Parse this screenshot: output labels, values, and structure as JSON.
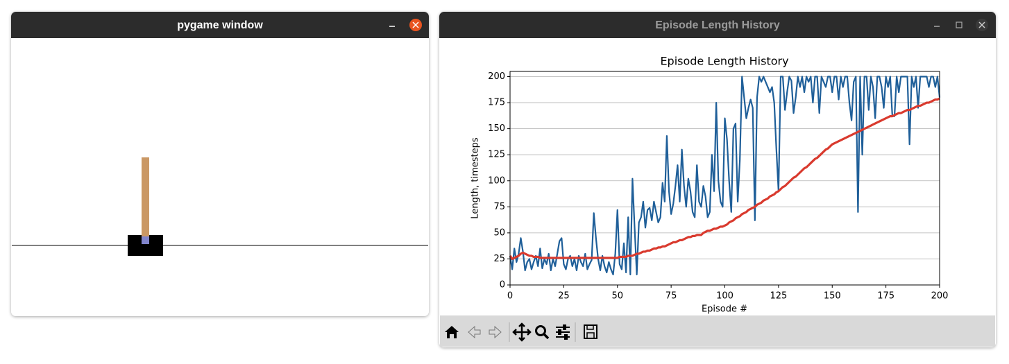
{
  "windows": [
    {
      "title": "pygame window"
    },
    {
      "title": "Episode Length History"
    }
  ],
  "chart_data": {
    "type": "line",
    "title": "Episode Length History",
    "x_label": "Episode #",
    "y_label": "Length, timesteps",
    "x": [
      0,
      1,
      2,
      3,
      4,
      5,
      6,
      7,
      8,
      9,
      10,
      11,
      12,
      13,
      14,
      15,
      16,
      17,
      18,
      19,
      20,
      21,
      22,
      23,
      24,
      25,
      26,
      27,
      28,
      29,
      30,
      31,
      32,
      33,
      34,
      35,
      36,
      37,
      38,
      39,
      40,
      41,
      42,
      43,
      44,
      45,
      46,
      47,
      48,
      49,
      50,
      51,
      52,
      53,
      54,
      55,
      56,
      57,
      58,
      59,
      60,
      61,
      62,
      63,
      64,
      65,
      66,
      67,
      68,
      69,
      70,
      71,
      72,
      73,
      74,
      75,
      76,
      77,
      78,
      79,
      80,
      81,
      82,
      83,
      84,
      85,
      86,
      87,
      88,
      89,
      90,
      91,
      92,
      93,
      94,
      95,
      96,
      97,
      98,
      99,
      100,
      101,
      102,
      103,
      104,
      105,
      106,
      107,
      108,
      109,
      110,
      111,
      112,
      113,
      114,
      115,
      116,
      117,
      118,
      119,
      120,
      121,
      122,
      123,
      124,
      125,
      126,
      127,
      128,
      129,
      130,
      131,
      132,
      133,
      134,
      135,
      136,
      137,
      138,
      139,
      140,
      141,
      142,
      143,
      144,
      145,
      146,
      147,
      148,
      149,
      150,
      151,
      152,
      153,
      154,
      155,
      156,
      157,
      158,
      159,
      160,
      161,
      162,
      163,
      164,
      165,
      166,
      167,
      168,
      169,
      170,
      171,
      172,
      173,
      174,
      175,
      176,
      177,
      178,
      179,
      180,
      181,
      182,
      183,
      184,
      185,
      186,
      187,
      188,
      189,
      190,
      191,
      192,
      193,
      194,
      195,
      196,
      197,
      198,
      199,
      200
    ],
    "xlim": [
      0,
      200
    ],
    "xticks": [
      0,
      25,
      50,
      75,
      100,
      125,
      150,
      175,
      200
    ],
    "ylim": [
      0,
      205
    ],
    "yticks": [
      0,
      25,
      50,
      75,
      100,
      125,
      150,
      175,
      200
    ],
    "grid": "y",
    "series": [
      {
        "color": "#1f5f99",
        "values": [
          28,
          15,
          35,
          22,
          30,
          45,
          32,
          14,
          22,
          25,
          15,
          22,
          28,
          18,
          35,
          16,
          25,
          20,
          30,
          14,
          25,
          18,
          30,
          42,
          45,
          20,
          15,
          25,
          28,
          18,
          25,
          14,
          28,
          22,
          18,
          30,
          15,
          20,
          24,
          69,
          45,
          25,
          14,
          28,
          18,
          12,
          22,
          15,
          10,
          30,
          72,
          20,
          15,
          40,
          12,
          65,
          10,
          102,
          55,
          10,
          60,
          65,
          80,
          55,
          72,
          74,
          62,
          80,
          70,
          60,
          65,
          98,
          80,
          143,
          90,
          68,
          78,
          95,
          115,
          80,
          130,
          95,
          75,
          102,
          90,
          70,
          65,
          115,
          80,
          75,
          95,
          85,
          65,
          70,
          125,
          90,
          175,
          100,
          80,
          75,
          160,
          140,
          100,
          70,
          150,
          155,
          80,
          120,
          200,
          180,
          160,
          170,
          178,
          170,
          62,
          180,
          200,
          195,
          200,
          195,
          190,
          185,
          190,
          175,
          130,
          90,
          200,
          200,
          168,
          185,
          200,
          196,
          165,
          180,
          200,
          190,
          200,
          185,
          200,
          195,
          200,
          175,
          200,
          200,
          165,
          200,
          195,
          190,
          200,
          200,
          185,
          200,
          200,
          178,
          200,
          190,
          200,
          200,
          175,
          158,
          195,
          200,
          70,
          200,
          125,
          200,
          200,
          168,
          200,
          190,
          160,
          200,
          200,
          190,
          170,
          200,
          190,
          200,
          162,
          162,
          200,
          185,
          200,
          200,
          200,
          200,
          135,
          200,
          190,
          200,
          170,
          200,
          200,
          200,
          200,
          190,
          200,
          200,
          190,
          200,
          180
        ]
      },
      {
        "color": "#d93a2e",
        "values": [
          28,
          25,
          26,
          27,
          28,
          30,
          31,
          30,
          29,
          28,
          28,
          27,
          27,
          27,
          26,
          26,
          26,
          26,
          26,
          26,
          26,
          26,
          26,
          26,
          26,
          26,
          26,
          26,
          26,
          26,
          26,
          26,
          26,
          26,
          26,
          26,
          26,
          26,
          26,
          26,
          26,
          26,
          26,
          26,
          26,
          26,
          26,
          26,
          26,
          26,
          26,
          27,
          27,
          27,
          27,
          28,
          28,
          28,
          29,
          30,
          30,
          31,
          32,
          32,
          33,
          33,
          34,
          35,
          35,
          36,
          36,
          37,
          37,
          38,
          39,
          40,
          41,
          41,
          42,
          43,
          43,
          44,
          45,
          46,
          46,
          47,
          47,
          48,
          48,
          48,
          50,
          51,
          52,
          52,
          53,
          54,
          54,
          55,
          56,
          56,
          57,
          58,
          60,
          61,
          62,
          64,
          65,
          66,
          68,
          69,
          70,
          72,
          73,
          74,
          75,
          77,
          78,
          79,
          81,
          82,
          83,
          85,
          86,
          87,
          89,
          90,
          92,
          94,
          95,
          97,
          99,
          101,
          103,
          104,
          106,
          108,
          110,
          112,
          113,
          115,
          117,
          119,
          121,
          122,
          124,
          126,
          128,
          130,
          131,
          133,
          135,
          136,
          137,
          138,
          139,
          140,
          141,
          142,
          143,
          144,
          145,
          146,
          147,
          148,
          149,
          150,
          151,
          152,
          153,
          154,
          155,
          156,
          157,
          158,
          159,
          160,
          161,
          162,
          162,
          163,
          164,
          165,
          165,
          166,
          167,
          168,
          168,
          169,
          170,
          171,
          172,
          172,
          173,
          174,
          175,
          175,
          176,
          177,
          178,
          178,
          179
        ]
      }
    ]
  }
}
